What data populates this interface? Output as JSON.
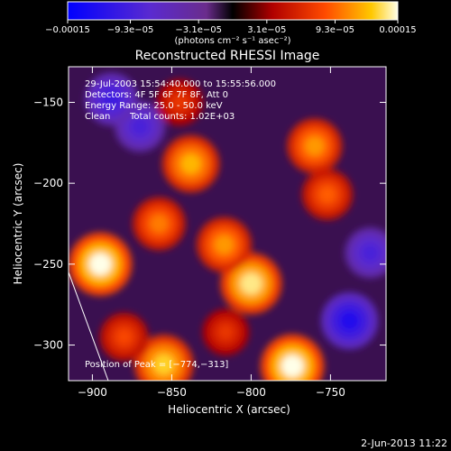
{
  "chart_data": {
    "type": "heatmap",
    "title": "Reconstructed RHESSI Image",
    "xlabel": "Heliocentric X (arcsec)",
    "ylabel": "Heliocentric Y (arcsec)",
    "xlim": [
      -915,
      -715
    ],
    "ylim": [
      -322,
      -128
    ],
    "x_ticks": [
      -900,
      -850,
      -800,
      -750
    ],
    "x_tick_labels": [
      "−900",
      "−850",
      "−800",
      "−750"
    ],
    "y_ticks": [
      -150,
      -200,
      -250,
      -300
    ],
    "y_tick_labels": [
      "−150",
      "−200",
      "−250",
      "−300"
    ],
    "colorbar": {
      "min": -0.00015,
      "max": 0.00015,
      "ticks": [
        -0.00015,
        -9.3e-05,
        -3.1e-05,
        3.1e-05,
        9.3e-05,
        0.00015
      ],
      "tick_labels": [
        "−0.00015",
        "−9.3e−05",
        "−3.1e−05",
        "3.1e−05",
        "9.3e−05",
        "0.00015"
      ],
      "units": "(photons cm⁻² s⁻¹ asec⁻²)"
    },
    "annotations": {
      "time_range": "29-Jul-2003 15:54:40.000 to 15:55:56.000",
      "detectors": "Detectors: 4F 5F 6F 7F 8F, Att 0",
      "energy_range": "Energy Range: 25.0 - 50.0 keV",
      "algorithm": "Clean",
      "total_counts": "Total counts: 1.02E+03",
      "peak_position": "Position of Peak = [−774,−313]"
    },
    "peaks": [
      {
        "x": -895,
        "y": -250,
        "value": 0.00015
      },
      {
        "x": -800,
        "y": -262,
        "value": 0.00014
      },
      {
        "x": -774,
        "y": -313,
        "value": 0.00015
      },
      {
        "x": -855,
        "y": -312,
        "value": 0.00013
      },
      {
        "x": -760,
        "y": -177,
        "value": 0.00011
      },
      {
        "x": -838,
        "y": -188,
        "value": 0.00012
      },
      {
        "x": -858,
        "y": -225,
        "value": 0.0001
      },
      {
        "x": -817,
        "y": -238,
        "value": 0.00011
      },
      {
        "x": -880,
        "y": -295,
        "value": 8e-05
      },
      {
        "x": -816,
        "y": -292,
        "value": 7e-05
      },
      {
        "x": -752,
        "y": -207,
        "value": 9e-05
      },
      {
        "x": -870,
        "y": -165,
        "value": -9e-05
      },
      {
        "x": -738,
        "y": -285,
        "value": -0.00012
      },
      {
        "x": -888,
        "y": -148,
        "value": -0.0001
      },
      {
        "x": -725,
        "y": -243,
        "value": -9e-05
      },
      {
        "x": -845,
        "y": -150,
        "value": 7e-05
      }
    ],
    "limb_line": {
      "x1": -915,
      "y1": -255,
      "x2": -890,
      "y2": -322
    }
  },
  "footer": {
    "date": "2-Jun-2013 11:22"
  }
}
